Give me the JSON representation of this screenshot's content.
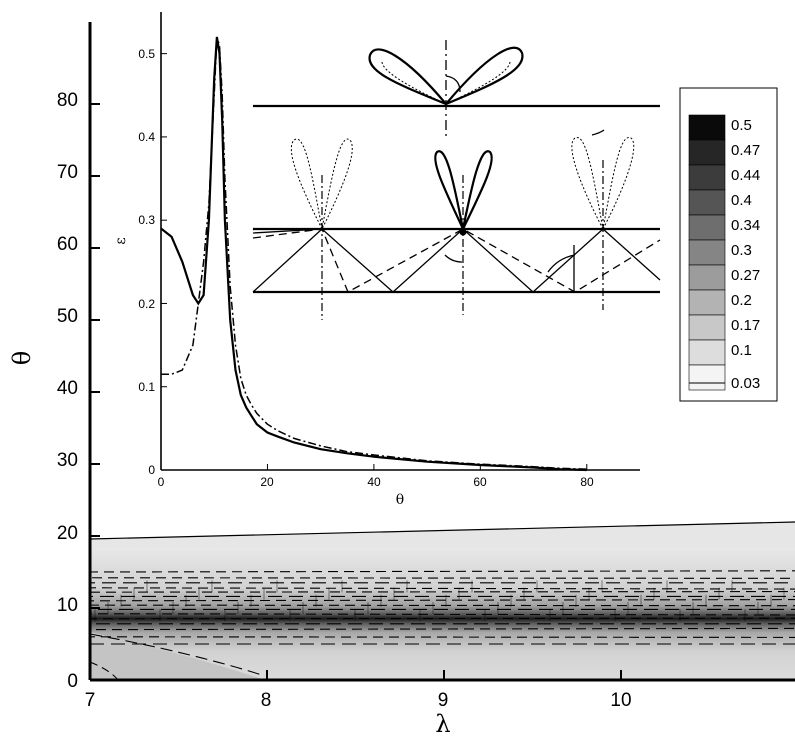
{
  "chart_data": [
    {
      "type": "heatmap",
      "title": "",
      "xlabel": "λ",
      "ylabel": "θ",
      "xlim": [
        7,
        11
      ],
      "ylim": [
        0,
        90
      ],
      "x_ticks": [
        7,
        8,
        9,
        10
      ],
      "y_ticks": [
        0,
        10,
        20,
        30,
        40,
        50,
        60,
        70,
        80
      ],
      "contour_levels": [
        0.5,
        0.47,
        0.44,
        0.4,
        0.34,
        0.3,
        0.27,
        0.2,
        0.17,
        0.1,
        0.03
      ],
      "level_colors": [
        "#0a0a0a",
        "#262626",
        "#3c3c3c",
        "#555555",
        "#6e6e6e",
        "#858585",
        "#9c9c9c",
        "#b3b3b3",
        "#c8c8c8",
        "#dddddd",
        "#f4f4f4"
      ],
      "peak_theta": 11,
      "band_upper_boundary": {
        "x": [
          7,
          11
        ],
        "y": [
          19.5,
          21.5
        ]
      },
      "legend_position": "right"
    },
    {
      "type": "line",
      "title": "",
      "xlabel": "θ",
      "ylabel": "ε",
      "xlim": [
        0,
        90
      ],
      "ylim": [
        0,
        0.55
      ],
      "x_ticks": [
        0,
        20,
        40,
        60,
        80
      ],
      "y_ticks": [
        0,
        0.1,
        0.2,
        0.3,
        0.4,
        0.5
      ],
      "series": [
        {
          "style": "solid",
          "x": [
            0,
            2,
            4,
            6,
            7,
            8,
            9,
            10,
            10.5,
            11,
            11.5,
            12,
            13,
            14,
            15,
            16,
            17,
            18,
            20,
            22,
            25,
            30,
            35,
            40,
            50,
            60,
            70,
            75,
            80
          ],
          "y": [
            0.29,
            0.28,
            0.25,
            0.21,
            0.2,
            0.21,
            0.3,
            0.47,
            0.52,
            0.5,
            0.42,
            0.3,
            0.18,
            0.12,
            0.09,
            0.075,
            0.065,
            0.055,
            0.045,
            0.04,
            0.033,
            0.025,
            0.02,
            0.016,
            0.01,
            0.006,
            0.003,
            0.001,
            0.0
          ]
        },
        {
          "style": "dashdot",
          "x": [
            0,
            2,
            4,
            6,
            7,
            8,
            9,
            10,
            10.5,
            11,
            11.5,
            12,
            13,
            14,
            15,
            16,
            17,
            18,
            20,
            22,
            25,
            30,
            35,
            40,
            50,
            60,
            70,
            75,
            80
          ],
          "y": [
            0.115,
            0.115,
            0.12,
            0.15,
            0.2,
            0.25,
            0.32,
            0.45,
            0.52,
            0.51,
            0.45,
            0.35,
            0.22,
            0.15,
            0.11,
            0.09,
            0.078,
            0.068,
            0.055,
            0.047,
            0.038,
            0.029,
            0.022,
            0.018,
            0.011,
            0.007,
            0.004,
            0.002,
            0.001
          ]
        }
      ]
    }
  ],
  "main": {
    "xlabel": "λ",
    "ylabel": "θ",
    "x_tick_labels": [
      "7",
      "8",
      "9",
      "10"
    ],
    "y_tick_labels": [
      "0",
      "10",
      "20",
      "30",
      "40",
      "50",
      "60",
      "70",
      "80"
    ]
  },
  "inset": {
    "xlabel": "θ",
    "ylabel": "ε",
    "x_tick_labels": [
      "0",
      "20",
      "40",
      "60",
      "80"
    ],
    "y_tick_labels": [
      "0",
      "0.1",
      "0.2",
      "0.3",
      "0.4",
      "0.5"
    ]
  },
  "legend": {
    "labels": [
      "0.5",
      "0.47",
      "0.44",
      "0.4",
      "0.34",
      "0.3",
      "0.27",
      "0.2",
      "0.17",
      "0.1",
      "0.03"
    ]
  },
  "colors": {
    "band_light": "#dcdcdc",
    "band_dark": "#1a1a1a",
    "lobe_gray": "#a6a6a6"
  }
}
